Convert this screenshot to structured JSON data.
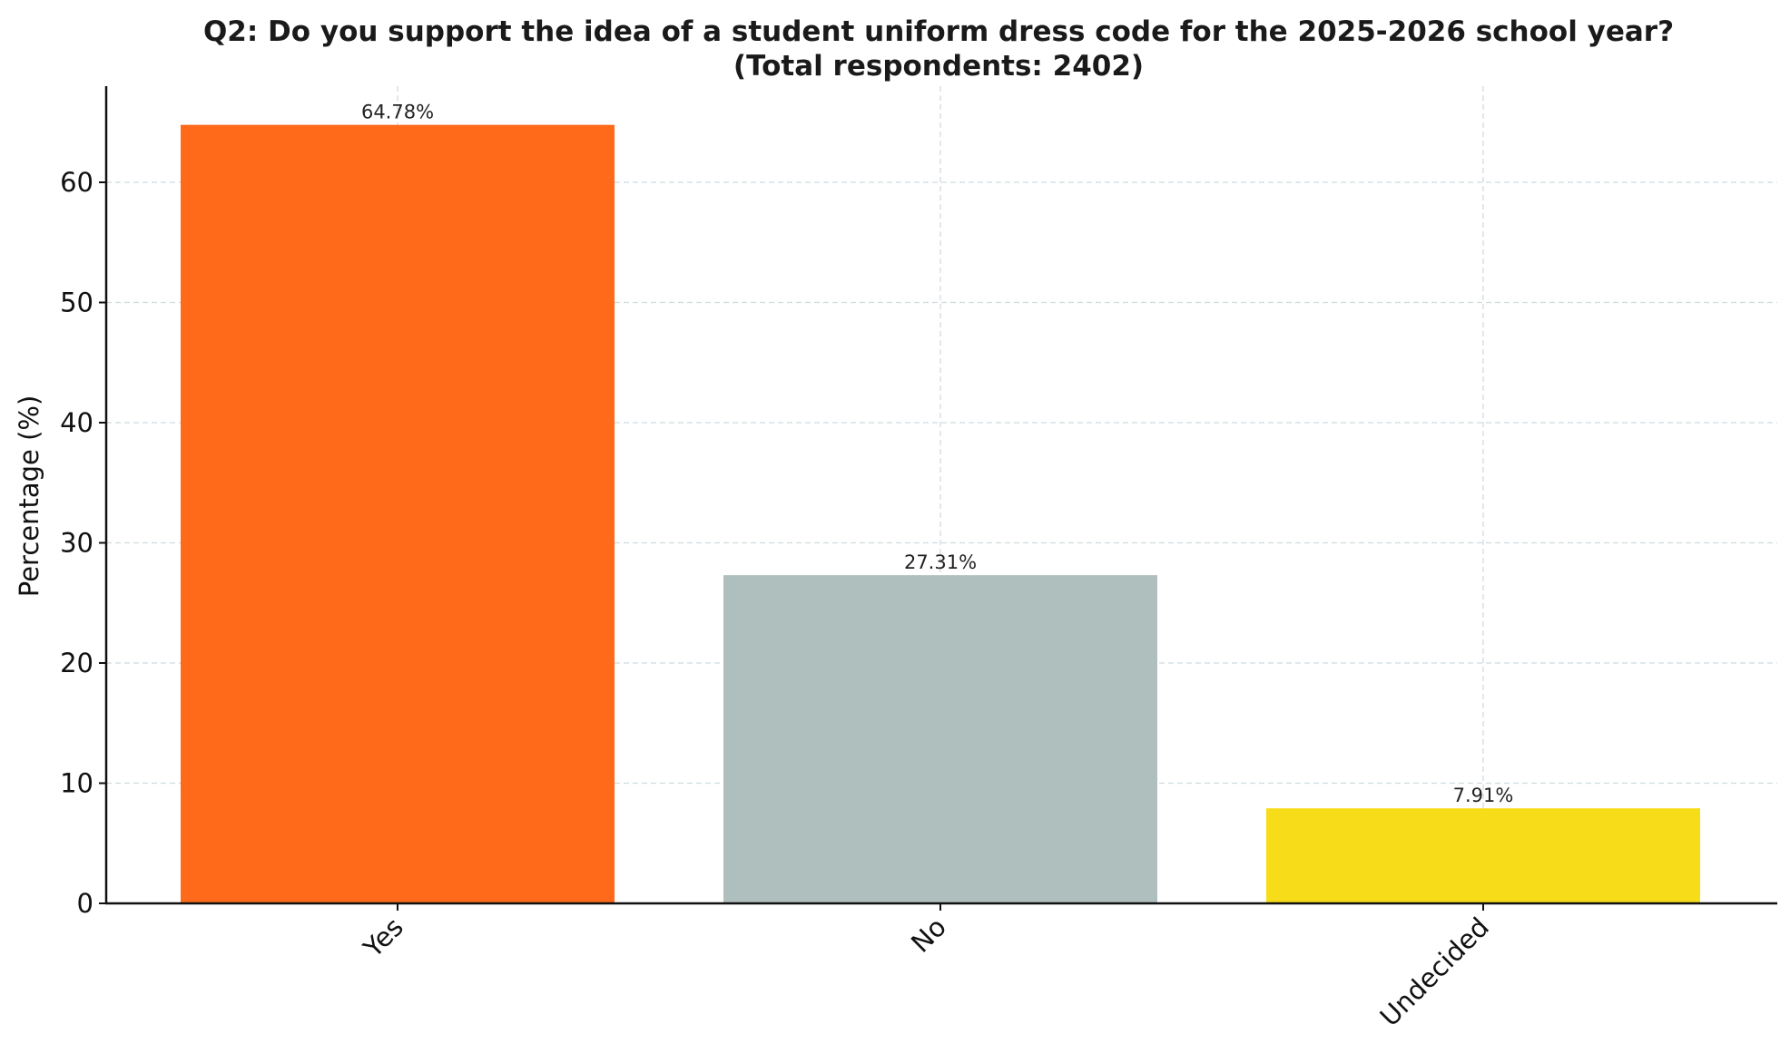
{
  "chart_data": {
    "type": "bar",
    "title": "Q2: Do you support the idea of a student uniform dress code for the 2025-2026 school year?",
    "subtitle": "(Total respondents: 2402)",
    "xlabel": "",
    "ylabel": "Percentage (%)",
    "categories": [
      "Yes",
      "No",
      "Undecided"
    ],
    "values": [
      64.78,
      27.31,
      7.91
    ],
    "data_labels": [
      "64.78%",
      "27.31%",
      "7.91%"
    ],
    "colors": [
      "#ff6a1a",
      "#afbfbe",
      "#f7dc1a"
    ],
    "ylim": [
      0,
      68
    ],
    "yticks": [
      0,
      10,
      20,
      30,
      40,
      50,
      60
    ],
    "grid": true,
    "legend": "none"
  }
}
